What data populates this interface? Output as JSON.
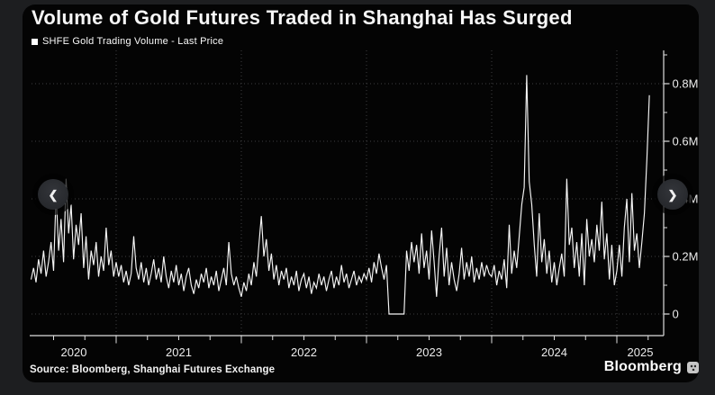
{
  "header": {
    "title": "Volume of Gold Futures Traded in Shanghai Has Surged",
    "legend": {
      "label": "SHFE Gold Trading Volume - Last Price",
      "swatch_color": "#ffffff"
    }
  },
  "nav": {
    "prev_icon": "❮",
    "next_icon": "❯"
  },
  "footer": {
    "source": "Source: Bloomberg, Shanghai Futures Exchange",
    "brand": "Bloomberg"
  },
  "colors": {
    "background": "#1d1e20",
    "card": "#040404",
    "line": "#f6f6f6",
    "grid": "#3e3e40",
    "axis": "#dedede",
    "tick_label": "#ececec",
    "button": "#2c2e33"
  },
  "chart_data": {
    "type": "line",
    "title": "Volume of Gold Futures Traded in Shanghai Has Surged",
    "series_name": "SHFE Gold Trading Volume - Last Price",
    "x_unit": "decimal year, weekly samples",
    "y_unit": "contracts (millions)",
    "xlim": [
      2020.31,
      2025.37
    ],
    "ylim": [
      -0.075,
      0.92
    ],
    "grid": "dotted",
    "legend_position": "top-left",
    "y_ticks_major": [
      0,
      0.2,
      0.4,
      0.6,
      0.8
    ],
    "y_tick_labels": [
      "0",
      "0.2M",
      "0.4M",
      "0.6M",
      "0.8M"
    ],
    "y_ticks_minor": [
      0.1,
      0.3,
      0.5,
      0.7,
      0.9
    ],
    "x_year_boundaries": [
      2021,
      2022,
      2023,
      2024,
      2025
    ],
    "x_year_labels": [
      "2020",
      "2021",
      "2022",
      "2023",
      "2024",
      "2025"
    ],
    "x_minor_tick_step": 0.25,
    "t_start": 2020.32,
    "t_step": 0.02,
    "values": [
      0.12,
      0.16,
      0.11,
      0.19,
      0.14,
      0.22,
      0.13,
      0.18,
      0.25,
      0.15,
      0.42,
      0.22,
      0.33,
      0.18,
      0.47,
      0.28,
      0.38,
      0.19,
      0.31,
      0.24,
      0.35,
      0.16,
      0.27,
      0.12,
      0.22,
      0.17,
      0.25,
      0.13,
      0.2,
      0.15,
      0.3,
      0.17,
      0.22,
      0.13,
      0.18,
      0.13,
      0.17,
      0.11,
      0.15,
      0.1,
      0.14,
      0.27,
      0.16,
      0.12,
      0.18,
      0.11,
      0.16,
      0.1,
      0.14,
      0.19,
      0.12,
      0.16,
      0.11,
      0.2,
      0.13,
      0.09,
      0.15,
      0.11,
      0.17,
      0.1,
      0.14,
      0.08,
      0.13,
      0.16,
      0.1,
      0.07,
      0.12,
      0.09,
      0.14,
      0.11,
      0.16,
      0.09,
      0.13,
      0.1,
      0.15,
      0.08,
      0.12,
      0.16,
      0.1,
      0.25,
      0.14,
      0.1,
      0.13,
      0.09,
      0.06,
      0.11,
      0.08,
      0.14,
      0.1,
      0.18,
      0.13,
      0.24,
      0.34,
      0.2,
      0.26,
      0.15,
      0.21,
      0.12,
      0.17,
      0.1,
      0.15,
      0.12,
      0.16,
      0.09,
      0.13,
      0.1,
      0.15,
      0.08,
      0.12,
      0.14,
      0.09,
      0.13,
      0.07,
      0.11,
      0.09,
      0.14,
      0.1,
      0.13,
      0.08,
      0.12,
      0.15,
      0.09,
      0.13,
      0.1,
      0.17,
      0.11,
      0.14,
      0.09,
      0.12,
      0.15,
      0.1,
      0.13,
      0.11,
      0.14,
      0.12,
      0.16,
      0.11,
      0.18,
      0.14,
      0.21,
      0.16,
      0.12,
      0.17,
      0.0,
      0.0,
      0.0,
      0.0,
      0.0,
      0.0,
      0.0,
      0.22,
      0.15,
      0.25,
      0.18,
      0.24,
      0.14,
      0.28,
      0.16,
      0.22,
      0.12,
      0.29,
      0.18,
      0.06,
      0.2,
      0.3,
      0.13,
      0.23,
      0.1,
      0.18,
      0.12,
      0.08,
      0.14,
      0.23,
      0.12,
      0.18,
      0.13,
      0.2,
      0.11,
      0.16,
      0.12,
      0.18,
      0.13,
      0.17,
      0.14,
      0.13,
      0.17,
      0.1,
      0.15,
      0.12,
      0.19,
      0.09,
      0.31,
      0.14,
      0.22,
      0.16,
      0.27,
      0.38,
      0.44,
      0.83,
      0.46,
      0.38,
      0.24,
      0.13,
      0.35,
      0.18,
      0.26,
      0.14,
      0.22,
      0.11,
      0.18,
      0.1,
      0.16,
      0.21,
      0.13,
      0.47,
      0.24,
      0.3,
      0.16,
      0.25,
      0.13,
      0.28,
      0.1,
      0.33,
      0.2,
      0.26,
      0.18,
      0.31,
      0.22,
      0.39,
      0.19,
      0.28,
      0.12,
      0.24,
      0.1,
      0.15,
      0.24,
      0.13,
      0.3,
      0.4,
      0.18,
      0.42,
      0.22,
      0.28,
      0.16,
      0.25,
      0.35,
      0.54,
      0.76
    ]
  }
}
